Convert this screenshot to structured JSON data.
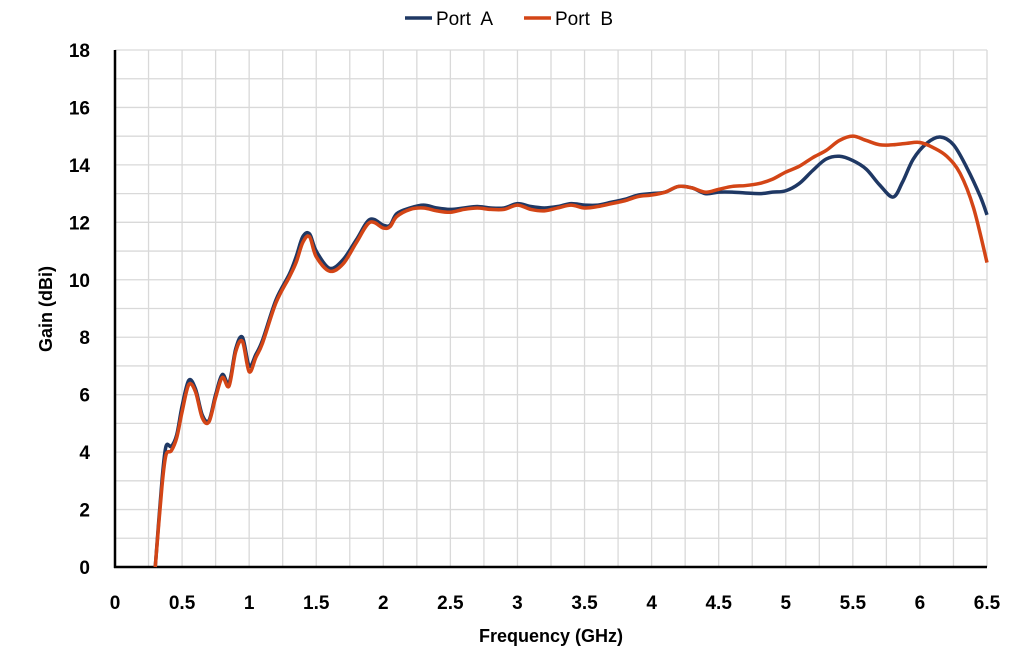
{
  "chart_data": {
    "type": "line",
    "title": "",
    "xlabel": "Frequency  (GHz)",
    "ylabel": "Gain (dBi)",
    "xlim": [
      0,
      6.5
    ],
    "ylim": [
      0,
      18
    ],
    "x_ticks": [
      "0",
      "0.5",
      "1",
      "1.5",
      "2",
      "2.5",
      "3",
      "3.5",
      "4",
      "4.5",
      "5",
      "5.5",
      "6",
      "6.5"
    ],
    "y_ticks": [
      "0",
      "2",
      "4",
      "6",
      "8",
      "10",
      "12",
      "14",
      "16",
      "18"
    ],
    "grid": true,
    "minor_grid": {
      "x_step": 0.25,
      "y_step": 1
    },
    "legend_position": "top-center",
    "series": [
      {
        "name": "Port  A",
        "color": "#1F3864",
        "x": [
          0.3,
          0.35,
          0.38,
          0.42,
          0.46,
          0.5,
          0.55,
          0.6,
          0.65,
          0.7,
          0.75,
          0.8,
          0.85,
          0.9,
          0.95,
          1.0,
          1.05,
          1.1,
          1.2,
          1.3,
          1.35,
          1.4,
          1.45,
          1.5,
          1.6,
          1.7,
          1.8,
          1.9,
          2.0,
          2.05,
          2.1,
          2.2,
          2.3,
          2.4,
          2.5,
          2.6,
          2.7,
          2.8,
          2.9,
          3.0,
          3.1,
          3.2,
          3.3,
          3.4,
          3.5,
          3.6,
          3.7,
          3.8,
          3.9,
          4.0,
          4.1,
          4.2,
          4.3,
          4.4,
          4.5,
          4.6,
          4.8,
          4.9,
          5.0,
          5.1,
          5.2,
          5.3,
          5.4,
          5.5,
          5.6,
          5.7,
          5.8,
          5.87,
          5.95,
          6.05,
          6.15,
          6.25,
          6.35,
          6.45,
          6.5
        ],
        "y": [
          0,
          3.0,
          4.2,
          4.2,
          4.6,
          5.6,
          6.5,
          6.2,
          5.3,
          5.1,
          6.0,
          6.7,
          6.4,
          7.6,
          8.0,
          7.0,
          7.4,
          7.9,
          9.3,
          10.2,
          10.8,
          11.5,
          11.6,
          11.0,
          10.4,
          10.7,
          11.4,
          12.1,
          11.9,
          11.9,
          12.3,
          12.5,
          12.6,
          12.5,
          12.45,
          12.5,
          12.55,
          12.5,
          12.5,
          12.65,
          12.55,
          12.5,
          12.55,
          12.65,
          12.6,
          12.6,
          12.7,
          12.8,
          12.95,
          13.0,
          13.05,
          13.25,
          13.2,
          13.0,
          13.05,
          13.05,
          13.0,
          13.05,
          13.1,
          13.35,
          13.8,
          14.2,
          14.3,
          14.15,
          13.85,
          13.3,
          12.88,
          13.4,
          14.2,
          14.75,
          14.97,
          14.7,
          13.9,
          12.9,
          12.26
        ]
      },
      {
        "name": "Port  B",
        "color": "#D34516",
        "x": [
          0.3,
          0.35,
          0.38,
          0.42,
          0.46,
          0.5,
          0.55,
          0.6,
          0.65,
          0.7,
          0.75,
          0.8,
          0.85,
          0.9,
          0.95,
          1.0,
          1.05,
          1.1,
          1.2,
          1.3,
          1.35,
          1.4,
          1.45,
          1.5,
          1.6,
          1.7,
          1.8,
          1.9,
          2.0,
          2.05,
          2.1,
          2.2,
          2.3,
          2.4,
          2.5,
          2.6,
          2.7,
          2.8,
          2.9,
          3.0,
          3.1,
          3.2,
          3.3,
          3.4,
          3.5,
          3.6,
          3.7,
          3.8,
          3.9,
          4.0,
          4.1,
          4.2,
          4.3,
          4.4,
          4.5,
          4.6,
          4.7,
          4.8,
          4.9,
          5.0,
          5.1,
          5.2,
          5.3,
          5.4,
          5.5,
          5.6,
          5.7,
          5.8,
          5.9,
          6.0,
          6.1,
          6.2,
          6.3,
          6.4,
          6.5
        ],
        "y": [
          0,
          2.8,
          3.9,
          4.05,
          4.5,
          5.4,
          6.35,
          6.1,
          5.2,
          5.05,
          5.9,
          6.6,
          6.3,
          7.5,
          7.85,
          6.8,
          7.3,
          7.8,
          9.2,
          10.1,
          10.6,
          11.3,
          11.5,
          10.8,
          10.3,
          10.55,
          11.3,
          12.0,
          11.8,
          11.85,
          12.2,
          12.45,
          12.5,
          12.4,
          12.35,
          12.45,
          12.5,
          12.45,
          12.45,
          12.6,
          12.45,
          12.4,
          12.5,
          12.6,
          12.5,
          12.55,
          12.65,
          12.75,
          12.9,
          12.95,
          13.05,
          13.25,
          13.2,
          13.05,
          13.15,
          13.25,
          13.28,
          13.35,
          13.5,
          13.75,
          13.95,
          14.25,
          14.5,
          14.85,
          15.0,
          14.85,
          14.7,
          14.7,
          14.75,
          14.78,
          14.6,
          14.3,
          13.7,
          12.5,
          10.6
        ]
      }
    ]
  }
}
